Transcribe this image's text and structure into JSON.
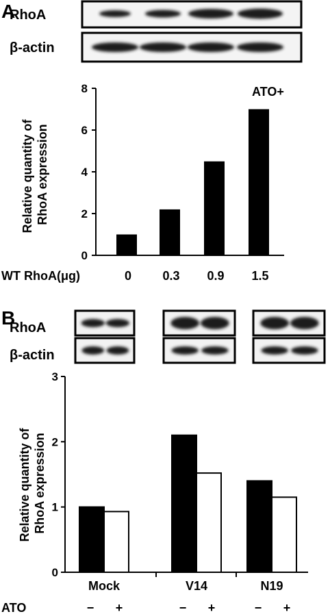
{
  "chart_data": [
    {
      "panel": "A",
      "type": "bar",
      "blot_labels": [
        "RhoA",
        "β-actin"
      ],
      "annotation": "ATO+",
      "xlabel": "WT RhoA(μg)",
      "ylabel": "Relative quantity of RhoA expression",
      "ylabel_lines": [
        "Relative quantity of",
        "RhoA expression"
      ],
      "categories": [
        "0",
        "0.3",
        "0.9",
        "1.5"
      ],
      "values": [
        1.0,
        2.2,
        4.5,
        7.0
      ],
      "ylim": [
        0,
        8
      ],
      "yticks": [
        0,
        2,
        4,
        6,
        8
      ],
      "bar_color": "#000000"
    },
    {
      "panel": "B",
      "type": "bar",
      "blot_labels": [
        "RhoA",
        "β-actin"
      ],
      "row_label": "ATO",
      "ylabel": "Relative quantity of RhoA expression",
      "ylabel_lines": [
        "Relative quantity of",
        "RhoA expression"
      ],
      "categories": [
        "Mock",
        "V14",
        "N19"
      ],
      "series": [
        {
          "ato": "−",
          "values": [
            1.0,
            2.1,
            1.4
          ],
          "color": "#000000"
        },
        {
          "ato": "+",
          "values": [
            0.93,
            1.52,
            1.15
          ],
          "color": "#ffffff"
        }
      ],
      "ylim": [
        0,
        3
      ],
      "yticks": [
        0,
        1,
        2,
        3
      ]
    }
  ]
}
